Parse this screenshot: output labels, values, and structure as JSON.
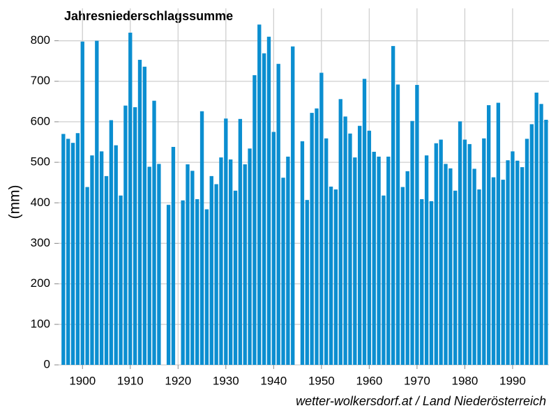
{
  "chart_data": {
    "type": "bar",
    "title": "Jahresniederschlagssumme",
    "y_label": "(mm)",
    "source": "wetter-wolkersdorf.at / Land Niederösterreich",
    "color": "#0b8ed0",
    "grid": true,
    "x": [
      1896,
      1897,
      1898,
      1899,
      1900,
      1901,
      1902,
      1903,
      1904,
      1905,
      1906,
      1907,
      1908,
      1909,
      1910,
      1911,
      1912,
      1913,
      1914,
      1915,
      1916,
      1917,
      1918,
      1919,
      1920,
      1921,
      1922,
      1923,
      1924,
      1925,
      1926,
      1927,
      1928,
      1929,
      1930,
      1931,
      1932,
      1933,
      1934,
      1935,
      1936,
      1937,
      1938,
      1939,
      1940,
      1941,
      1942,
      1943,
      1944,
      1945,
      1946,
      1947,
      1948,
      1949,
      1950,
      1951,
      1952,
      1953,
      1954,
      1955,
      1956,
      1957,
      1958,
      1959,
      1960,
      1961,
      1962,
      1963,
      1964,
      1965,
      1966,
      1967,
      1968,
      1969,
      1970,
      1971,
      1972,
      1973,
      1974,
      1975,
      1976,
      1977,
      1978,
      1979,
      1980,
      1981,
      1982,
      1983,
      1984,
      1985,
      1986,
      1987,
      1988,
      1989,
      1990,
      1991,
      1992,
      1993,
      1994,
      1995,
      1996,
      1997
    ],
    "values": [
      570,
      558,
      548,
      572,
      798,
      439,
      517,
      800,
      527,
      466,
      604,
      542,
      418,
      640,
      820,
      636,
      753,
      736,
      489,
      652,
      496,
      null,
      395,
      538,
      null,
      406,
      495,
      479,
      409,
      626,
      384,
      466,
      446,
      512,
      608,
      507,
      430,
      607,
      495,
      534,
      715,
      840,
      769,
      810,
      575,
      743,
      462,
      514,
      786,
      null,
      552,
      407,
      622,
      633,
      721,
      559,
      440,
      433,
      656,
      613,
      571,
      512,
      590,
      706,
      578,
      526,
      514,
      418,
      514,
      787,
      692,
      439,
      478,
      602,
      691,
      409,
      517,
      404,
      547,
      556,
      496,
      485,
      430,
      601,
      556,
      545,
      484,
      433,
      559,
      641,
      463,
      647,
      457,
      505,
      527,
      504,
      488,
      558,
      594,
      672,
      644,
      605
    ],
    "xlim": [
      1895,
      1997.6
    ],
    "xticks": [
      1900,
      1910,
      1920,
      1930,
      1940,
      1950,
      1960,
      1970,
      1980,
      1990
    ],
    "ylim": [
      0,
      880
    ],
    "yticks": [
      0,
      100,
      200,
      300,
      400,
      500,
      600,
      700,
      800
    ]
  }
}
